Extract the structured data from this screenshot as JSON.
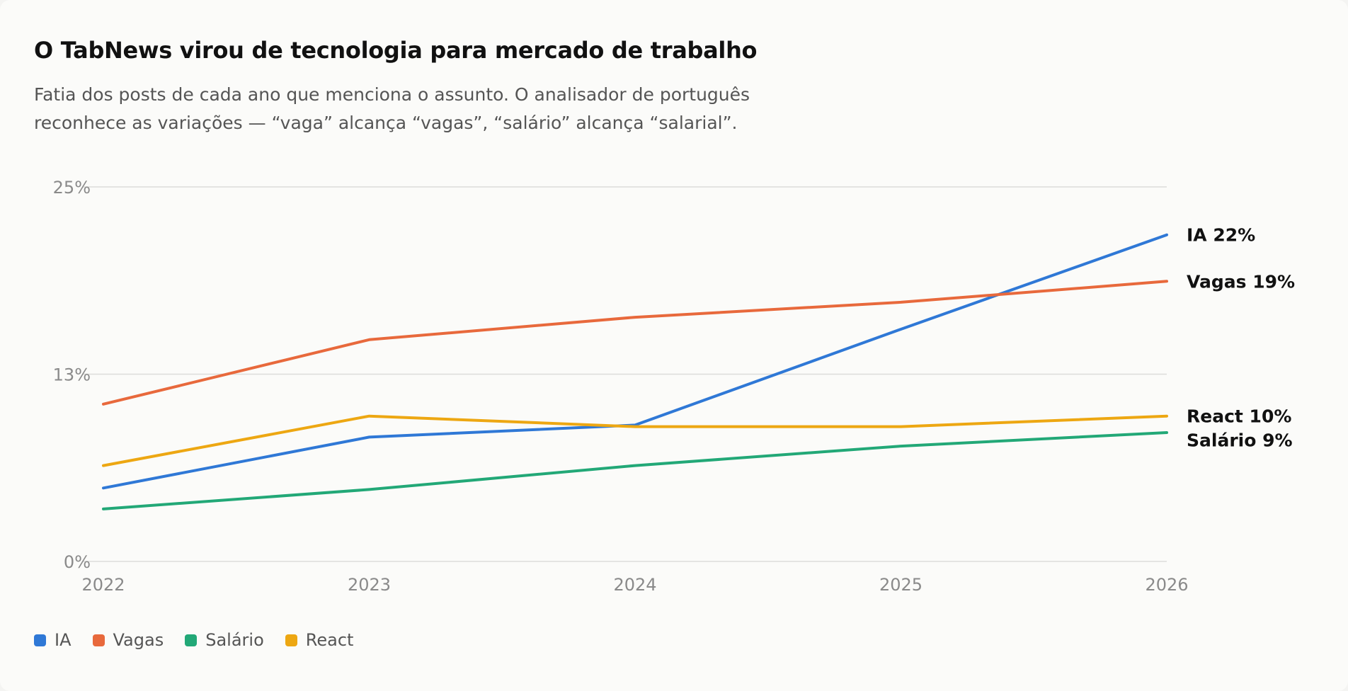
{
  "chart_data": {
    "type": "line",
    "title": "O TabNews virou de tecnologia para mercado de trabalho",
    "subtitle": "Fatia dos posts de cada ano que menciona o assunto. O analisador de português reconhece as variações — “vaga” alcança “vagas”, “salário” alcança “salarial”.",
    "x": [
      "2022",
      "2023",
      "2024",
      "2025",
      "2026"
    ],
    "ylim": [
      0,
      25
    ],
    "yticks": [
      0,
      12.5,
      25
    ],
    "ytick_labels": [
      "0%",
      "13%",
      "25%"
    ],
    "grid": true,
    "legend_position": "bottom-left",
    "series": [
      {
        "name": "IA",
        "color": "#2f78d6",
        "values": [
          4.9,
          8.3,
          9.1,
          15.5,
          21.8
        ],
        "end_label": "IA 22%"
      },
      {
        "name": "Vagas",
        "color": "#e8693c",
        "values": [
          10.5,
          14.8,
          16.3,
          17.3,
          18.7
        ],
        "end_label": "Vagas 19%"
      },
      {
        "name": "Salário",
        "color": "#22a877",
        "values": [
          3.5,
          4.8,
          6.4,
          7.7,
          8.6
        ],
        "end_label": "Salário 9%"
      },
      {
        "name": "React",
        "color": "#eda712",
        "values": [
          6.4,
          9.7,
          9.0,
          9.0,
          9.7
        ],
        "end_label": "React 10%"
      }
    ]
  }
}
